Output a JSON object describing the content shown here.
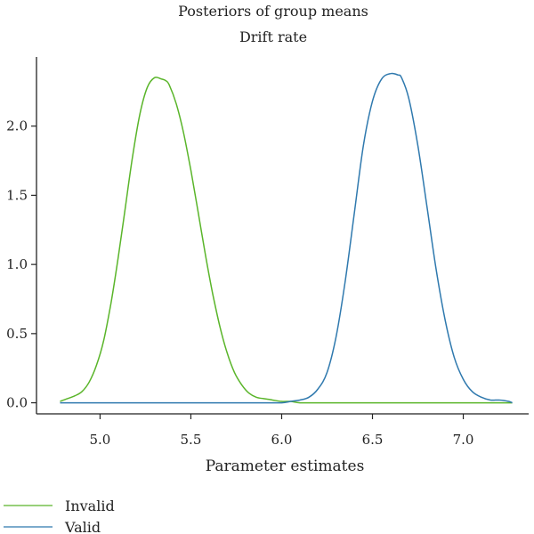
{
  "chart_data": {
    "type": "line",
    "title": "Posteriors of group means",
    "subtitle": "Drift rate",
    "xlabel": "Parameter estimates",
    "ylabel": "",
    "xlim": [
      4.65,
      7.36
    ],
    "ylim": [
      -0.08,
      2.5
    ],
    "xticks": [
      "5.0",
      "5.5",
      "6.0",
      "6.5",
      "7.0"
    ],
    "yticks": [
      "0.0",
      "0.5",
      "1.0",
      "1.5",
      "2.0"
    ],
    "grid": false,
    "legend_position": "bottom-left",
    "series": [
      {
        "name": "Invalid",
        "color": "#5ab52a",
        "x": [
          4.78,
          4.82,
          4.86,
          4.9,
          4.94,
          4.98,
          5.02,
          5.06,
          5.1,
          5.14,
          5.18,
          5.22,
          5.26,
          5.3,
          5.34,
          5.36,
          5.38,
          5.42,
          5.46,
          5.5,
          5.54,
          5.58,
          5.62,
          5.66,
          5.7,
          5.74,
          5.78,
          5.82,
          5.86,
          5.9,
          5.95,
          6.0,
          6.05,
          6.1,
          6.2,
          6.4,
          6.8,
          7.27
        ],
        "y": [
          0.01,
          0.03,
          0.05,
          0.08,
          0.15,
          0.27,
          0.45,
          0.72,
          1.05,
          1.42,
          1.79,
          2.09,
          2.28,
          2.35,
          2.34,
          2.33,
          2.3,
          2.16,
          1.95,
          1.68,
          1.38,
          1.07,
          0.79,
          0.55,
          0.36,
          0.22,
          0.13,
          0.07,
          0.04,
          0.03,
          0.02,
          0.01,
          0.01,
          0.0,
          0.0,
          0.0,
          0.0,
          0.0
        ]
      },
      {
        "name": "Valid",
        "color": "#2f79ae",
        "x": [
          4.78,
          5.2,
          5.6,
          5.9,
          6.0,
          6.05,
          6.1,
          6.15,
          6.2,
          6.25,
          6.3,
          6.35,
          6.4,
          6.45,
          6.5,
          6.55,
          6.6,
          6.64,
          6.66,
          6.7,
          6.75,
          6.8,
          6.85,
          6.9,
          6.95,
          7.0,
          7.05,
          7.1,
          7.15,
          7.2,
          7.25,
          7.27
        ],
        "y": [
          0.0,
          0.0,
          0.0,
          0.0,
          0.0,
          0.01,
          0.02,
          0.04,
          0.1,
          0.22,
          0.48,
          0.88,
          1.37,
          1.86,
          2.18,
          2.34,
          2.38,
          2.37,
          2.35,
          2.2,
          1.86,
          1.42,
          0.97,
          0.6,
          0.33,
          0.17,
          0.08,
          0.04,
          0.02,
          0.02,
          0.01,
          0.0
        ]
      }
    ]
  }
}
